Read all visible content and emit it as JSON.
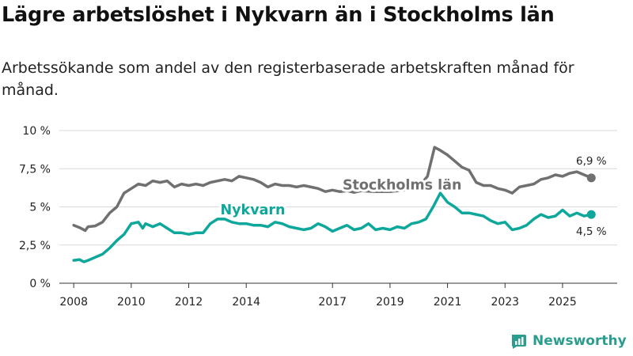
{
  "title": "Lägre arbetslöshet i Nykvarn än i Stockholms län",
  "subtitle": "Arbetssökande som andel av den registerbaserade arbetskraften månad för månad.",
  "brand": {
    "name": "Newsworthy"
  },
  "chart_data": {
    "type": "line",
    "xlim": [
      2007.5,
      2026.9
    ],
    "ylim": [
      0,
      10
    ],
    "x_ticks": [
      {
        "value": 2008,
        "label": "2008"
      },
      {
        "value": 2010,
        "label": "2010"
      },
      {
        "value": 2012,
        "label": "2012"
      },
      {
        "value": 2014,
        "label": "2014"
      },
      {
        "value": 2017,
        "label": "2017"
      },
      {
        "value": 2019,
        "label": "2019"
      },
      {
        "value": 2021,
        "label": "2021"
      },
      {
        "value": 2023,
        "label": "2023"
      },
      {
        "value": 2025,
        "label": "2025"
      }
    ],
    "y_ticks": [
      {
        "value": 0,
        "label": "0 %"
      },
      {
        "value": 2.5,
        "label": "2,5 %"
      },
      {
        "value": 5,
        "label": "5 %"
      },
      {
        "value": 7.5,
        "label": "7,5 %"
      },
      {
        "value": 10,
        "label": "10 %"
      }
    ],
    "grid": true,
    "series": [
      {
        "name": "Stockholms län",
        "color": "#707070",
        "end_label": "6,9 %",
        "points": [
          [
            2008.0,
            3.8
          ],
          [
            2008.2,
            3.65
          ],
          [
            2008.4,
            3.45
          ],
          [
            2008.5,
            3.7
          ],
          [
            2008.75,
            3.75
          ],
          [
            2009.0,
            4.0
          ],
          [
            2009.25,
            4.6
          ],
          [
            2009.5,
            5.0
          ],
          [
            2009.75,
            5.9
          ],
          [
            2010.0,
            6.2
          ],
          [
            2010.25,
            6.5
          ],
          [
            2010.5,
            6.4
          ],
          [
            2010.75,
            6.7
          ],
          [
            2011.0,
            6.6
          ],
          [
            2011.25,
            6.7
          ],
          [
            2011.5,
            6.3
          ],
          [
            2011.75,
            6.5
          ],
          [
            2012.0,
            6.4
          ],
          [
            2012.25,
            6.5
          ],
          [
            2012.5,
            6.4
          ],
          [
            2012.75,
            6.6
          ],
          [
            2013.0,
            6.7
          ],
          [
            2013.25,
            6.8
          ],
          [
            2013.5,
            6.7
          ],
          [
            2013.75,
            7.0
          ],
          [
            2014.0,
            6.9
          ],
          [
            2014.25,
            6.8
          ],
          [
            2014.5,
            6.6
          ],
          [
            2014.75,
            6.3
          ],
          [
            2015.0,
            6.5
          ],
          [
            2015.25,
            6.4
          ],
          [
            2015.5,
            6.4
          ],
          [
            2015.75,
            6.3
          ],
          [
            2016.0,
            6.4
          ],
          [
            2016.25,
            6.3
          ],
          [
            2016.5,
            6.2
          ],
          [
            2016.75,
            6.0
          ],
          [
            2017.0,
            6.1
          ],
          [
            2017.25,
            6.0
          ],
          [
            2017.5,
            6.05
          ],
          [
            2017.75,
            5.95
          ],
          [
            2018.0,
            6.05
          ],
          [
            2018.5,
            6.0
          ],
          [
            2019.0,
            6.0
          ],
          [
            2019.5,
            6.1
          ],
          [
            2020.0,
            6.3
          ],
          [
            2020.3,
            7.0
          ],
          [
            2020.55,
            8.9
          ],
          [
            2020.75,
            8.7
          ],
          [
            2021.0,
            8.4
          ],
          [
            2021.25,
            8.0
          ],
          [
            2021.5,
            7.6
          ],
          [
            2021.75,
            7.4
          ],
          [
            2022.0,
            6.6
          ],
          [
            2022.25,
            6.4
          ],
          [
            2022.5,
            6.4
          ],
          [
            2022.75,
            6.2
          ],
          [
            2023.0,
            6.1
          ],
          [
            2023.25,
            5.9
          ],
          [
            2023.5,
            6.3
          ],
          [
            2023.75,
            6.4
          ],
          [
            2024.0,
            6.5
          ],
          [
            2024.25,
            6.8
          ],
          [
            2024.5,
            6.9
          ],
          [
            2024.75,
            7.1
          ],
          [
            2025.0,
            7.0
          ],
          [
            2025.25,
            7.2
          ],
          [
            2025.5,
            7.3
          ],
          [
            2025.75,
            7.1
          ],
          [
            2026.0,
            6.9
          ]
        ]
      },
      {
        "name": "Nykvarn",
        "color": "#0ea79b",
        "end_label": "4,5 %",
        "points": [
          [
            2008.0,
            1.5
          ],
          [
            2008.2,
            1.55
          ],
          [
            2008.35,
            1.4
          ],
          [
            2008.5,
            1.5
          ],
          [
            2008.75,
            1.7
          ],
          [
            2009.0,
            1.9
          ],
          [
            2009.25,
            2.3
          ],
          [
            2009.5,
            2.8
          ],
          [
            2009.75,
            3.2
          ],
          [
            2010.0,
            3.9
          ],
          [
            2010.25,
            4.0
          ],
          [
            2010.4,
            3.6
          ],
          [
            2010.5,
            3.9
          ],
          [
            2010.75,
            3.7
          ],
          [
            2011.0,
            3.9
          ],
          [
            2011.25,
            3.6
          ],
          [
            2011.5,
            3.3
          ],
          [
            2011.75,
            3.3
          ],
          [
            2012.0,
            3.2
          ],
          [
            2012.25,
            3.3
          ],
          [
            2012.5,
            3.3
          ],
          [
            2012.75,
            3.9
          ],
          [
            2013.0,
            4.2
          ],
          [
            2013.25,
            4.2
          ],
          [
            2013.5,
            4.0
          ],
          [
            2013.75,
            3.9
          ],
          [
            2014.0,
            3.9
          ],
          [
            2014.25,
            3.8
          ],
          [
            2014.5,
            3.8
          ],
          [
            2014.75,
            3.7
          ],
          [
            2015.0,
            4.0
          ],
          [
            2015.25,
            3.9
          ],
          [
            2015.5,
            3.7
          ],
          [
            2015.75,
            3.6
          ],
          [
            2016.0,
            3.5
          ],
          [
            2016.25,
            3.6
          ],
          [
            2016.5,
            3.9
          ],
          [
            2016.75,
            3.7
          ],
          [
            2017.0,
            3.4
          ],
          [
            2017.25,
            3.6
          ],
          [
            2017.5,
            3.8
          ],
          [
            2017.75,
            3.5
          ],
          [
            2018.0,
            3.6
          ],
          [
            2018.25,
            3.9
          ],
          [
            2018.5,
            3.5
          ],
          [
            2018.75,
            3.6
          ],
          [
            2019.0,
            3.5
          ],
          [
            2019.25,
            3.7
          ],
          [
            2019.5,
            3.6
          ],
          [
            2019.75,
            3.9
          ],
          [
            2020.0,
            4.0
          ],
          [
            2020.25,
            4.2
          ],
          [
            2020.5,
            5.0
          ],
          [
            2020.75,
            5.9
          ],
          [
            2021.0,
            5.3
          ],
          [
            2021.25,
            5.0
          ],
          [
            2021.5,
            4.6
          ],
          [
            2021.75,
            4.6
          ],
          [
            2022.0,
            4.5
          ],
          [
            2022.25,
            4.4
          ],
          [
            2022.5,
            4.1
          ],
          [
            2022.75,
            3.9
          ],
          [
            2023.0,
            4.0
          ],
          [
            2023.25,
            3.5
          ],
          [
            2023.5,
            3.6
          ],
          [
            2023.75,
            3.8
          ],
          [
            2024.0,
            4.2
          ],
          [
            2024.25,
            4.5
          ],
          [
            2024.5,
            4.3
          ],
          [
            2024.75,
            4.4
          ],
          [
            2025.0,
            4.8
          ],
          [
            2025.25,
            4.4
          ],
          [
            2025.5,
            4.6
          ],
          [
            2025.75,
            4.4
          ],
          [
            2026.0,
            4.5
          ]
        ]
      }
    ]
  }
}
